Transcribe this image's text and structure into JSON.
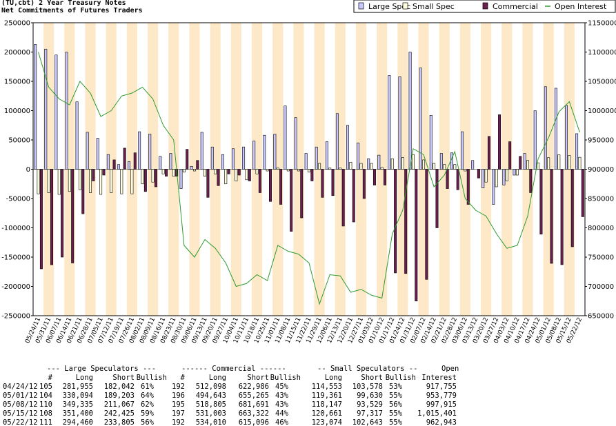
{
  "chart_data": {
    "type": "bar",
    "title": "(TU,cbt) 2 Year Treasury Notes",
    "subtitle": "Net Commitments of Futures Traders",
    "legend": "top-right",
    "categories": [
      "05/24/11",
      "05/31/11",
      "06/07/11",
      "06/14/11",
      "06/21/11",
      "06/28/11",
      "07/05/11",
      "07/12/11",
      "07/19/11",
      "07/26/11",
      "08/02/11",
      "08/09/11",
      "08/16/11",
      "08/23/11",
      "08/30/11",
      "09/06/11",
      "09/13/11",
      "09/20/11",
      "09/27/11",
      "10/04/11",
      "10/11/11",
      "10/18/11",
      "10/25/11",
      "11/01/11",
      "11/08/11",
      "11/15/11",
      "11/22/11",
      "11/29/11",
      "12/06/11",
      "12/13/11",
      "12/20/11",
      "12/27/11",
      "01/03/12",
      "01/10/12",
      "01/17/12",
      "01/24/12",
      "01/31/12",
      "02/07/12",
      "02/14/12",
      "02/21/12",
      "02/28/12",
      "03/06/12",
      "03/13/12",
      "03/20/12",
      "03/27/12",
      "04/03/12",
      "04/10/12",
      "04/17/12",
      "04/24/12",
      "05/01/12",
      "05/08/12",
      "05/15/12",
      "05/22/12"
    ],
    "series": [
      {
        "name": "Large Spec",
        "type": "bar",
        "color": "#c8c8ff",
        "axis": "y",
        "values": [
          213000,
          205000,
          195000,
          200000,
          115000,
          63000,
          53000,
          25000,
          8000,
          13000,
          64000,
          60000,
          22000,
          27000,
          -33000,
          5000,
          63000,
          38000,
          25000,
          35000,
          38000,
          48000,
          58000,
          60000,
          108000,
          88000,
          27000,
          38000,
          47000,
          95000,
          75000,
          45000,
          18000,
          24000,
          160000,
          158000,
          200000,
          173000,
          92000,
          27000,
          28000,
          64000,
          15000,
          -32000,
          -60000,
          -27000,
          -10000,
          27000,
          99913,
          140891,
          138268,
          108975,
          60655
        ]
      },
      {
        "name": "Small Spec",
        "type": "bar",
        "color": "#ffffe0",
        "axis": "y",
        "values": [
          -42000,
          -40000,
          -43000,
          -38000,
          -35000,
          -40000,
          -43000,
          -40000,
          -42000,
          -42000,
          -25000,
          -22000,
          -8000,
          -12000,
          -5000,
          -3000,
          -12000,
          -8000,
          -25000,
          -20000,
          -18000,
          -8000,
          -3000,
          2000,
          -3000,
          -3000,
          -5000,
          10000,
          2000,
          2000,
          12000,
          10000,
          10000,
          3000,
          18000,
          20000,
          25000,
          16000,
          10000,
          8000,
          8000,
          -3000,
          0,
          -22000,
          -30000,
          -20000,
          -10000,
          15000,
          10975,
          19731,
          24618,
          23344,
          20431
        ]
      },
      {
        "name": "Commercial",
        "type": "bar",
        "color": "#6b1f4f",
        "axis": "y",
        "values": [
          -170000,
          -163000,
          -150000,
          -160000,
          -76000,
          -20000,
          -10000,
          16000,
          36000,
          28000,
          -38000,
          -30000,
          -12000,
          -12000,
          34000,
          15000,
          -48000,
          -28000,
          -8000,
          -10000,
          -20000,
          -40000,
          -55000,
          -60000,
          -106000,
          -83000,
          -20000,
          -48000,
          -45000,
          -97000,
          -90000,
          -50000,
          -27000,
          -27000,
          -177000,
          -178000,
          -225000,
          -188000,
          -100000,
          -33000,
          -35000,
          -60000,
          -15000,
          56000,
          93000,
          47000,
          22000,
          -40000,
          -110888,
          -160622,
          -162886,
          -132319,
          -81086
        ]
      },
      {
        "name": "Open Interest",
        "type": "line",
        "color": "#2e9a2e",
        "axis": "y2",
        "values": [
          1100000,
          1040000,
          1020000,
          1010000,
          1050000,
          1030000,
          990000,
          1000000,
          1025000,
          1030000,
          1040000,
          1020000,
          975000,
          950000,
          770000,
          750000,
          780000,
          765000,
          740000,
          700000,
          705000,
          720000,
          710000,
          770000,
          760000,
          755000,
          740000,
          670000,
          720000,
          718000,
          690000,
          695000,
          685000,
          680000,
          790000,
          830000,
          935000,
          925000,
          870000,
          890000,
          930000,
          850000,
          830000,
          820000,
          790000,
          765000,
          770000,
          820000,
          917755,
          953779,
          997915,
          1015401,
          962943
        ]
      }
    ],
    "ylim": [
      -250000,
      250000
    ],
    "yticks": [
      -250000,
      -200000,
      -150000,
      -100000,
      -50000,
      0,
      50000,
      100000,
      150000,
      200000,
      250000
    ],
    "y2lim": [
      650000,
      1150000
    ],
    "y2ticks": [
      650000,
      700000,
      750000,
      800000,
      850000,
      900000,
      950000,
      1000000,
      1050000,
      1100000,
      1150000
    ],
    "grid": false
  },
  "table": {
    "group_headers": [
      "--- Large Speculators ---",
      "------ Commercial ------",
      "-- Small Speculators --",
      "Open"
    ],
    "columns": [
      "#",
      "Long",
      "Short",
      "Bullish",
      "#",
      "Long",
      "Short",
      "Bullish",
      "Long",
      "Short",
      "Bullish",
      "Interest"
    ],
    "rows": [
      [
        "04/24/12",
        "105",
        "281,955",
        "182,042",
        "61%",
        "192",
        "512,098",
        "622,986",
        "45%",
        "114,553",
        "103,578",
        "53%",
        "917,755"
      ],
      [
        "05/01/12",
        "104",
        "330,094",
        "189,203",
        "64%",
        "196",
        "494,643",
        "655,265",
        "43%",
        "119,361",
        "99,630",
        "55%",
        "953,779"
      ],
      [
        "05/08/12",
        "110",
        "349,335",
        "211,067",
        "62%",
        "195",
        "518,805",
        "681,691",
        "43%",
        "118,147",
        "93,529",
        "56%",
        "997,915"
      ],
      [
        "05/15/12",
        "108",
        "351,400",
        "242,425",
        "59%",
        "197",
        "531,003",
        "663,322",
        "44%",
        "120,661",
        "97,317",
        "55%",
        "1,015,401"
      ],
      [
        "05/22/12",
        "111",
        "294,460",
        "233,805",
        "56%",
        "192",
        "534,010",
        "615,096",
        "46%",
        "123,074",
        "102,643",
        "55%",
        "962,943"
      ]
    ]
  }
}
